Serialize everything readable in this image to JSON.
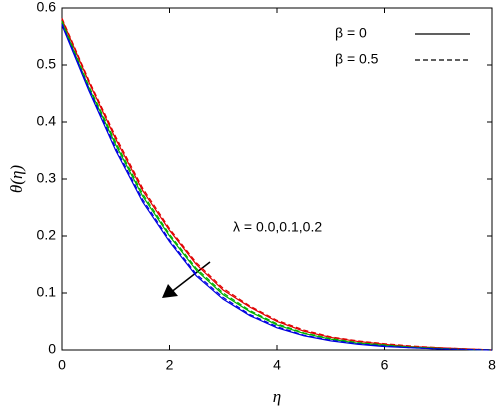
{
  "chart_data": {
    "type": "line",
    "xlabel": "η",
    "ylabel": "θ(η)",
    "annotation": "λ = 0.0,0.1,0.2",
    "x": [
      0,
      0.5,
      1,
      1.5,
      2,
      2.5,
      3,
      3.5,
      4,
      4.5,
      5,
      5.5,
      6,
      6.5,
      7,
      7.5,
      8
    ],
    "xlim": [
      0,
      8
    ],
    "xticks": [
      0,
      2,
      4,
      6,
      8
    ],
    "ylim": [
      0,
      0.6
    ],
    "yticks": [
      0,
      0.1,
      0.2,
      0.3,
      0.4,
      0.5,
      0.6
    ],
    "legend_position": "upper right",
    "legend": [
      {
        "label": "β = 0",
        "dashed": false
      },
      {
        "label": "β = 0.5",
        "dashed": true
      }
    ],
    "series": [
      {
        "color": "#e00000",
        "dashed": false,
        "values": [
          0.58,
          0.47,
          0.37,
          0.28,
          0.21,
          0.15,
          0.105,
          0.075,
          0.05,
          0.033,
          0.022,
          0.015,
          0.01,
          0.006,
          0.004,
          0.002,
          0
        ]
      },
      {
        "color": "#00b000",
        "dashed": false,
        "values": [
          0.575,
          0.46,
          0.36,
          0.27,
          0.2,
          0.14,
          0.097,
          0.067,
          0.044,
          0.029,
          0.019,
          0.012,
          0.008,
          0.005,
          0.003,
          0.001,
          0
        ]
      },
      {
        "color": "#0000e0",
        "dashed": false,
        "values": [
          0.57,
          0.455,
          0.35,
          0.26,
          0.19,
          0.13,
          0.089,
          0.06,
          0.039,
          0.025,
          0.016,
          0.01,
          0.006,
          0.004,
          0.002,
          0.001,
          0
        ]
      },
      {
        "color": "#e00000",
        "dashed": true,
        "values": [
          0.582,
          0.473,
          0.374,
          0.284,
          0.213,
          0.153,
          0.108,
          0.077,
          0.052,
          0.035,
          0.023,
          0.016,
          0.011,
          0.007,
          0.004,
          0.002,
          0
        ]
      },
      {
        "color": "#00b000",
        "dashed": true,
        "values": [
          0.577,
          0.463,
          0.364,
          0.274,
          0.203,
          0.143,
          0.1,
          0.069,
          0.046,
          0.03,
          0.02,
          0.013,
          0.009,
          0.005,
          0.003,
          0.001,
          0
        ]
      },
      {
        "color": "#0000e0",
        "dashed": true,
        "values": [
          0.572,
          0.458,
          0.354,
          0.264,
          0.193,
          0.133,
          0.092,
          0.062,
          0.041,
          0.026,
          0.017,
          0.011,
          0.007,
          0.004,
          0.002,
          0.001,
          0
        ]
      }
    ]
  }
}
